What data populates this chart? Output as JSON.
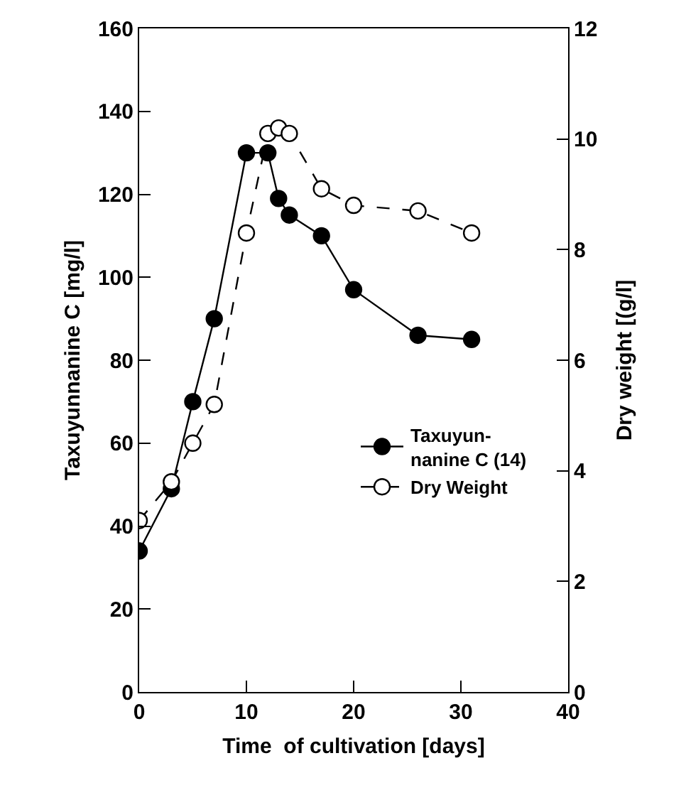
{
  "chart_data": {
    "type": "line",
    "xlabel": "Time  of cultivation [days]",
    "ylabel": "Taxuyunnanine C [mg/l]",
    "y2label": "Dry weight [(g/l]",
    "xlim": [
      0,
      40
    ],
    "xticks": [
      0,
      10,
      20,
      30,
      40
    ],
    "ylim": [
      0,
      160
    ],
    "yticks": [
      0,
      20,
      40,
      60,
      80,
      100,
      120,
      140,
      160
    ],
    "y2lim": [
      0,
      12
    ],
    "y2ticks": [
      0,
      2,
      4,
      6,
      8,
      10,
      12
    ],
    "grid": false,
    "legend": "right",
    "series": [
      {
        "name": "Taxuyun-\nnanine C (14)",
        "color": "#000000",
        "marker": "circle",
        "line_style": "solid",
        "x": [
          0,
          3,
          5,
          7,
          10,
          12,
          13,
          14,
          17,
          20,
          26,
          31
        ],
        "values": [
          34,
          49,
          70,
          90,
          130,
          130,
          119,
          115,
          110,
          97,
          86,
          85
        ]
      },
      {
        "name": "Dry Weight",
        "color": "#000000",
        "marker": "circle-open",
        "line_style": "dashed",
        "axis": "y2",
        "x": [
          0,
          3,
          5,
          7,
          10,
          12,
          13,
          14,
          17,
          20,
          26,
          31
        ],
        "values": [
          3.1,
          3.8,
          4.5,
          5.2,
          8.3,
          10.1,
          10.2,
          10.1,
          9.1,
          8.8,
          8.7,
          8.3
        ]
      }
    ]
  }
}
